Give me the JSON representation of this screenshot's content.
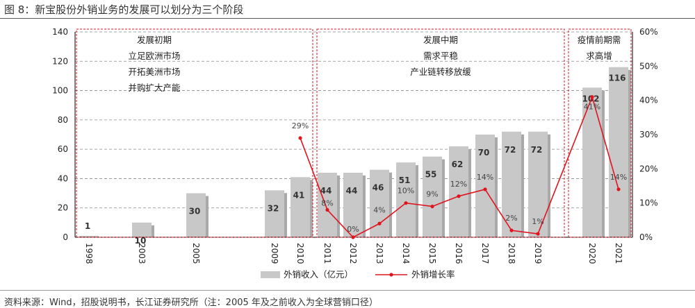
{
  "figure": {
    "title": "图 8：新宝股份外销业务的发展可以划分为三个阶段",
    "source": "资料来源：Wind，招股说明书，长江证券研究所（注：2005 年及之前收入为全球营销口径）"
  },
  "chart_data": {
    "type": "bar",
    "categories": [
      "1998",
      "2003",
      "2005",
      "2009",
      "2010",
      "2011",
      "2012",
      "2013",
      "2014",
      "2015",
      "2016",
      "2017",
      "2018",
      "2019",
      "2020",
      "2021"
    ],
    "series": [
      {
        "name": "外销收入（亿元）",
        "type": "bar",
        "axis": "left",
        "values": [
          1,
          10,
          30,
          32,
          41,
          44,
          44,
          46,
          51,
          55,
          62,
          70,
          72,
          72,
          102,
          116
        ],
        "labels": [
          "1",
          "10",
          "30",
          "32",
          "41",
          "44",
          "44",
          "46",
          "51",
          "55",
          "62",
          "70",
          "72",
          "72",
          "102",
          "116"
        ]
      },
      {
        "name": "外销增长率",
        "type": "line",
        "axis": "right",
        "x": [
          "2010",
          "2011",
          "2012",
          "2013",
          "2014",
          "2015",
          "2016",
          "2017",
          "2018",
          "2019",
          "2020",
          "2021"
        ],
        "values": [
          29,
          8,
          0,
          4,
          10,
          9,
          12,
          14,
          2,
          1,
          41,
          14
        ],
        "labels": [
          "29%",
          "8%",
          "0%",
          "4%",
          "10%",
          "9%",
          "12%",
          "14%",
          "2%",
          "1%",
          "41%",
          "14%"
        ]
      }
    ],
    "y_left": {
      "min": 0,
      "max": 140,
      "ticks": [
        "0",
        "20",
        "40",
        "60",
        "80",
        "100",
        "120",
        "140"
      ]
    },
    "y_right": {
      "min": 0,
      "max": 60,
      "ticks": [
        "0%",
        "10%",
        "20%",
        "30%",
        "40%",
        "50%",
        "60%"
      ]
    },
    "phases": [
      {
        "lines": [
          "发展初期",
          "立足欧洲市场",
          "开拓美洲市场",
          "并购扩大产能"
        ]
      },
      {
        "lines": [
          "发展中期",
          "需求平稳",
          "产业链转移放缓"
        ]
      },
      {
        "lines": [
          "疫情前期需",
          "求高增"
        ]
      }
    ],
    "legend_position": "bottom",
    "colors": {
      "bar": "#c8c8c8",
      "bar_shadow": "#a9a9a9",
      "line": "#e0141e",
      "phase_border": "#e0141e",
      "grid": "#888888"
    }
  }
}
